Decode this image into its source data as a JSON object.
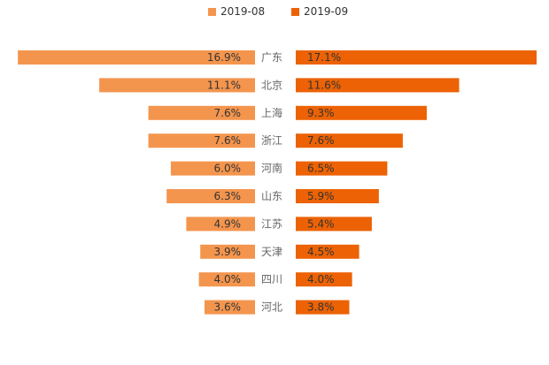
{
  "chart_data": {
    "type": "bar",
    "layout": "butterfly",
    "categories": [
      "广东",
      "北京",
      "上海",
      "浙江",
      "河南",
      "山东",
      "江苏",
      "天津",
      "四川",
      "河北"
    ],
    "series": [
      {
        "name": "2019-08",
        "color": "#f4954e",
        "values": [
          16.9,
          11.1,
          7.6,
          7.6,
          6.0,
          6.3,
          4.9,
          3.9,
          4.0,
          3.6
        ]
      },
      {
        "name": "2019-09",
        "color": "#ec6204",
        "values": [
          17.1,
          11.6,
          9.3,
          7.6,
          6.5,
          5.9,
          5.4,
          4.5,
          4.0,
          3.8
        ]
      }
    ],
    "value_suffix": "%",
    "xlim": [
      0,
      17.1
    ],
    "legend_position": "top-center",
    "label_color": "#333333",
    "category_label_color": "#666666"
  }
}
